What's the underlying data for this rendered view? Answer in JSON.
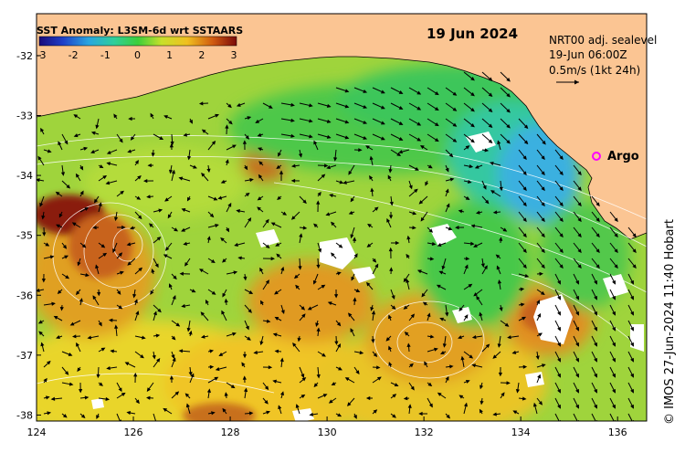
{
  "title": "SST Anomaly: L3SM-6d wrt SSTAARS",
  "date": "19 Jun 2024",
  "info": {
    "line1": "NRT00 adj. sealevel",
    "line2": "19-Jun 06:00Z",
    "line3": "0.5m/s (1kt 24h)"
  },
  "argo_label": "Argo",
  "credit": "© IMOS 27-Jun-2024 11:40 Hobart",
  "colorbar": {
    "ticks": [
      "-3",
      "-2",
      "-1",
      "0",
      "1",
      "2",
      "3"
    ],
    "range": [
      -3,
      3
    ]
  },
  "axes": {
    "x_ticks": [
      "124",
      "126",
      "128",
      "130",
      "132",
      "134",
      "136"
    ],
    "y_ticks": [
      "-32",
      "-33",
      "-34",
      "-35",
      "-36",
      "-37",
      "-38"
    ],
    "lon_range": [
      124,
      136.6
    ],
    "lat_range": [
      -38.1,
      -31.3
    ]
  },
  "colors": {
    "land": "#fbc593",
    "ocean_base": "#8ccf3a",
    "warm": "#e3a21a",
    "hot": "#8a1a10",
    "cool": "#2fbf4a",
    "cold": "#2aa6e0",
    "argo": "#ff00ff"
  }
}
